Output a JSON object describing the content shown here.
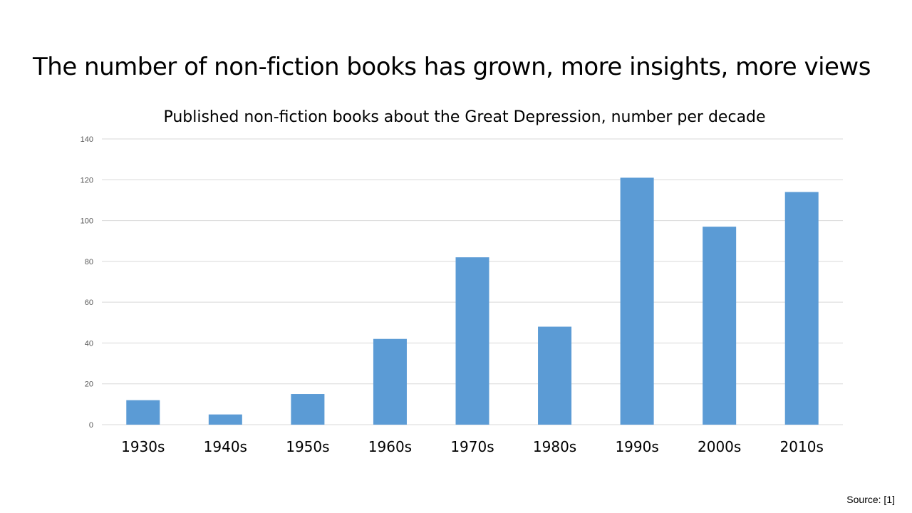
{
  "slide": {
    "title": "The number of non-fiction books has grown, more insights, more views",
    "source": "Source: [1]"
  },
  "colors": {
    "bar": "#5b9bd5",
    "grid": "#d9d9d9",
    "axis_text": "#595959"
  },
  "chart_data": {
    "type": "bar",
    "title": "Published non-fiction books about the Great Depression, number per decade",
    "xlabel": "",
    "ylabel": "",
    "categories": [
      "1930s",
      "1940s",
      "1950s",
      "1960s",
      "1970s",
      "1980s",
      "1990s",
      "2000s",
      "2010s"
    ],
    "values": [
      12,
      5,
      15,
      42,
      82,
      48,
      121,
      97,
      114
    ],
    "ylim": [
      0,
      140
    ],
    "yticks": [
      0,
      20,
      40,
      60,
      80,
      100,
      120,
      140
    ],
    "grid": true,
    "legend": "none"
  }
}
